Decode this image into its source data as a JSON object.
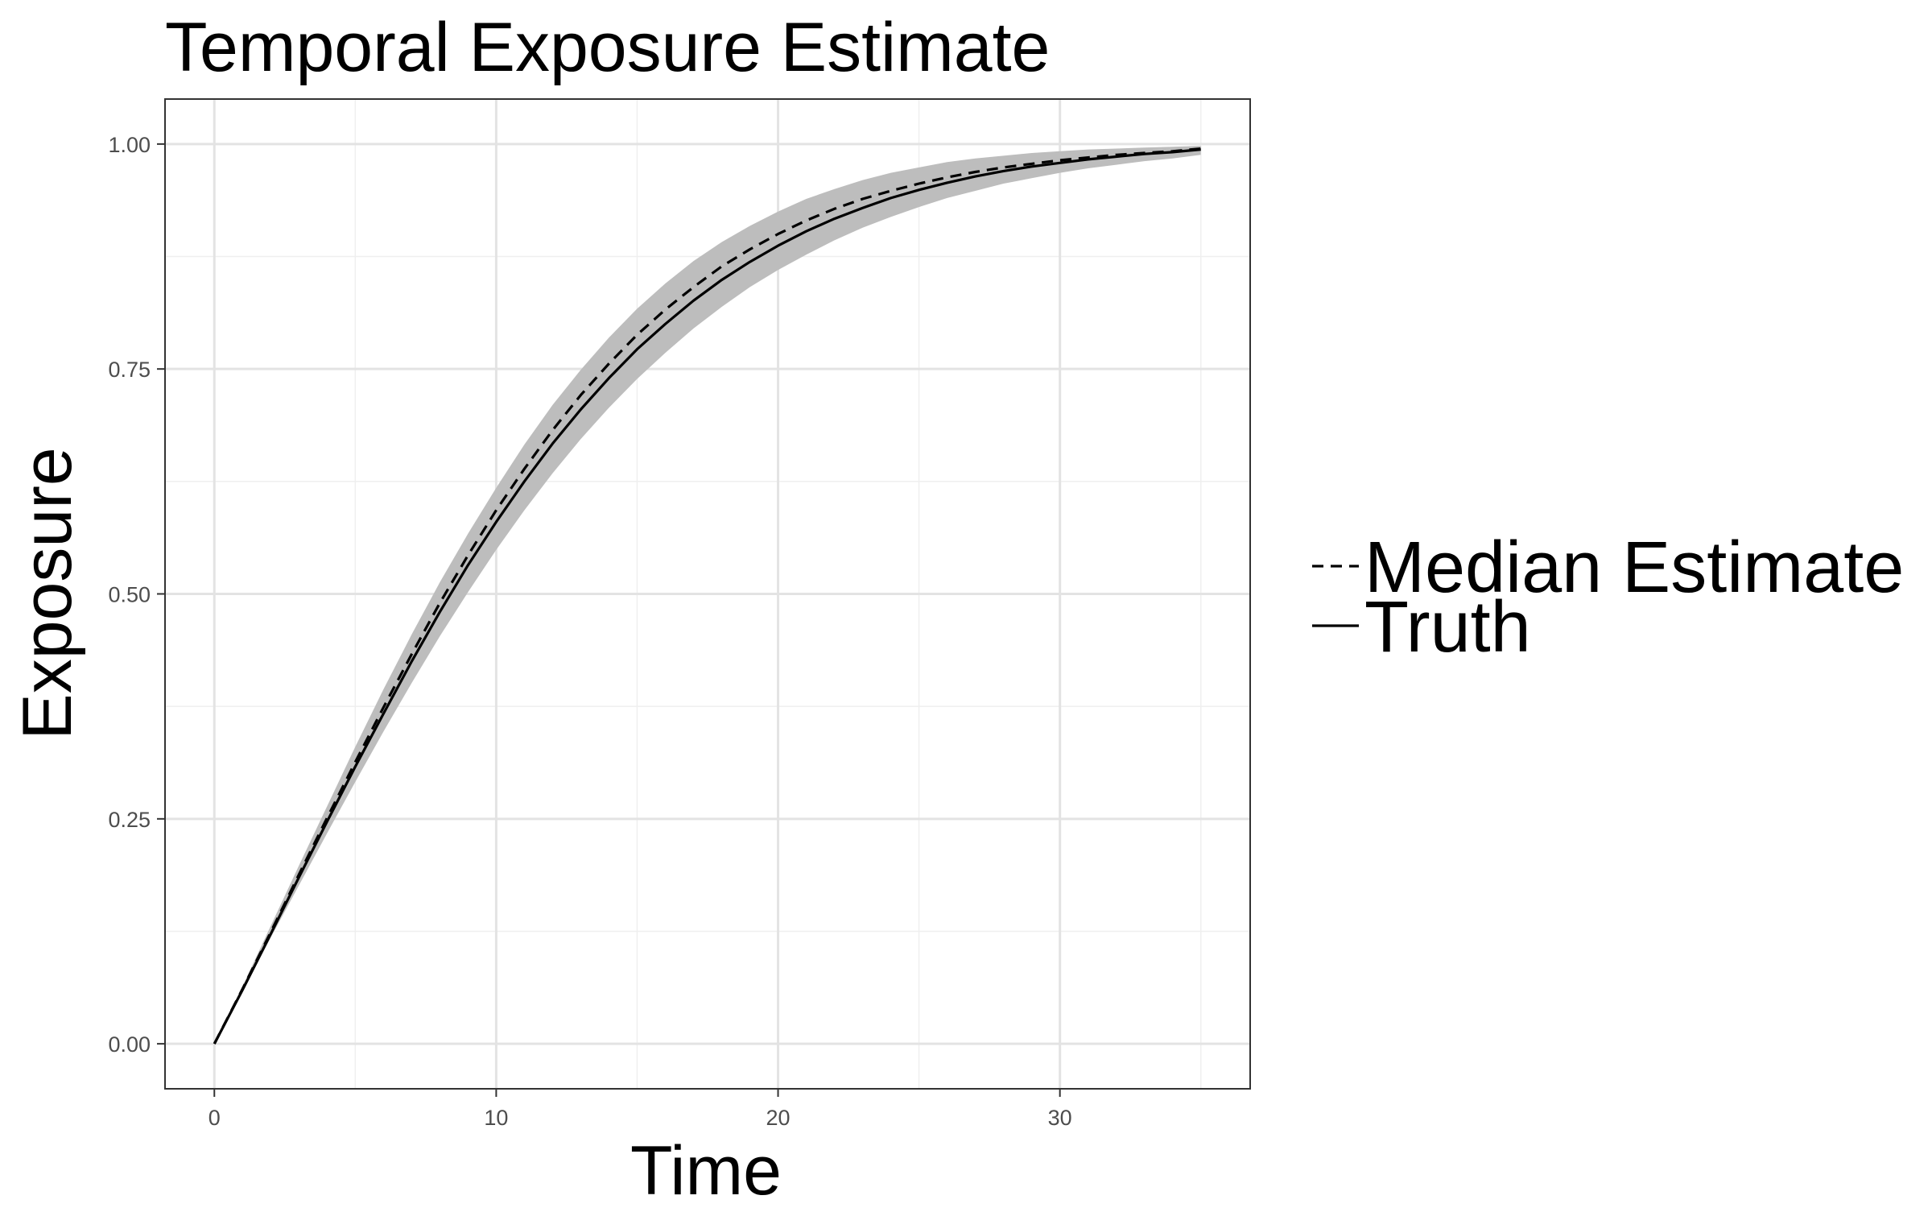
{
  "chart_data": {
    "type": "line",
    "title": "Temporal Exposure Estimate",
    "xlabel": "Time",
    "ylabel": "Exposure",
    "xlim": [
      -1.75,
      36.75
    ],
    "ylim": [
      -0.05,
      1.05
    ],
    "x_ticks": [
      0,
      10,
      20,
      30
    ],
    "x_tick_labels": [
      "0",
      "10",
      "20",
      "30"
    ],
    "y_ticks": [
      0,
      0.25,
      0.5,
      0.75,
      1.0
    ],
    "y_tick_labels": [
      "0.00",
      "0.25",
      "0.50",
      "0.75",
      "1.00"
    ],
    "grid": true,
    "legend_position": "right",
    "x": [
      0,
      1,
      2,
      3,
      4,
      5,
      6,
      7,
      8,
      9,
      10,
      11,
      12,
      13,
      14,
      15,
      16,
      17,
      18,
      19,
      20,
      21,
      22,
      23,
      24,
      25,
      26,
      27,
      28,
      29,
      30,
      31,
      32,
      33,
      34,
      35
    ],
    "band": {
      "lower": [
        0,
        0.058,
        0.118,
        0.176,
        0.234,
        0.291,
        0.347,
        0.401,
        0.453,
        0.502,
        0.549,
        0.593,
        0.634,
        0.672,
        0.707,
        0.739,
        0.768,
        0.795,
        0.819,
        0.841,
        0.86,
        0.877,
        0.893,
        0.907,
        0.919,
        0.93,
        0.94,
        0.948,
        0.956,
        0.962,
        0.968,
        0.973,
        0.977,
        0.981,
        0.984,
        0.988
      ],
      "upper": [
        0,
        0.064,
        0.131,
        0.198,
        0.264,
        0.33,
        0.394,
        0.455,
        0.513,
        0.567,
        0.618,
        0.666,
        0.71,
        0.749,
        0.785,
        0.817,
        0.845,
        0.87,
        0.891,
        0.909,
        0.925,
        0.939,
        0.95,
        0.96,
        0.968,
        0.974,
        0.98,
        0.984,
        0.987,
        0.99,
        0.992,
        0.994,
        0.995,
        0.996,
        0.997,
        0.998
      ]
    },
    "series": [
      {
        "name": "Median Estimate",
        "style": "dashed",
        "values": [
          0,
          0.061,
          0.124,
          0.188,
          0.251,
          0.313,
          0.374,
          0.433,
          0.49,
          0.543,
          0.593,
          0.639,
          0.682,
          0.721,
          0.756,
          0.788,
          0.816,
          0.841,
          0.864,
          0.883,
          0.9,
          0.915,
          0.928,
          0.939,
          0.948,
          0.956,
          0.963,
          0.969,
          0.974,
          0.978,
          0.982,
          0.985,
          0.988,
          0.99,
          0.992,
          0.995
        ]
      },
      {
        "name": "Truth",
        "style": "solid",
        "values": [
          0,
          0.06,
          0.122,
          0.185,
          0.247,
          0.308,
          0.367,
          0.425,
          0.48,
          0.532,
          0.58,
          0.625,
          0.667,
          0.705,
          0.74,
          0.772,
          0.8,
          0.826,
          0.849,
          0.869,
          0.887,
          0.903,
          0.917,
          0.929,
          0.94,
          0.949,
          0.957,
          0.964,
          0.97,
          0.975,
          0.979,
          0.983,
          0.986,
          0.989,
          0.991,
          0.994
        ]
      }
    ],
    "colors": {
      "band": "#bdbdbd",
      "line": "#000000",
      "panel_border": "#333333"
    }
  }
}
